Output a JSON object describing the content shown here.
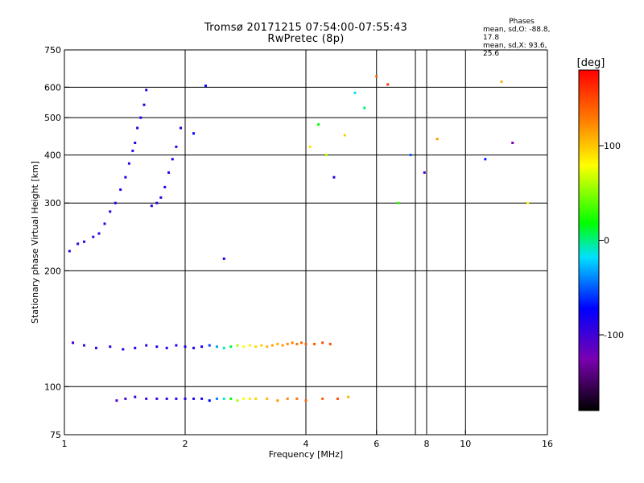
{
  "chart_data": {
    "type": "scatter",
    "title": "Tromsø 20171215 07:54:00-07:55:43",
    "subtitle": "RwPretec (8p)",
    "xlabel": "Frequency [MHz]",
    "ylabel": "Stationary phase Virtual Height [km]",
    "xscale": "log",
    "yscale": "log",
    "xlim": [
      1,
      16
    ],
    "ylim": [
      75,
      750
    ],
    "xticks": [
      1,
      2,
      4,
      6,
      8,
      10,
      16
    ],
    "xgrid": [
      2,
      4,
      6,
      7.5,
      8,
      10
    ],
    "yticks": [
      75,
      100,
      200,
      300,
      400,
      500,
      600,
      750
    ],
    "ygrid": [
      100,
      200,
      300,
      400,
      500,
      600
    ],
    "colorbar": {
      "label": "[deg]",
      "min": -180,
      "max": 180,
      "ticks": [
        100,
        0,
        -100
      ]
    },
    "phases_box": {
      "title": "Phases",
      "line1": "mean, sd,O: -88.8, 17.8",
      "line2": "mean, sd,X:  93.6, 25.6"
    },
    "series": [
      {
        "x": [
          1.05,
          1.12,
          1.2,
          1.3,
          1.4,
          1.5,
          1.6,
          1.7,
          1.8,
          1.9,
          2.0,
          2.1,
          2.2,
          2.3,
          2.4,
          2.5,
          2.6,
          2.7,
          2.8,
          2.9,
          3.0,
          3.1,
          3.2,
          3.3,
          3.4,
          3.5,
          3.6,
          3.7,
          3.8,
          3.9,
          4.0,
          4.2,
          4.4,
          4.6
        ],
        "y": [
          130,
          128,
          126,
          127,
          125,
          126,
          128,
          127,
          126,
          128,
          127,
          126,
          127,
          128,
          127,
          126,
          127,
          128,
          127,
          128,
          127,
          128,
          127,
          128,
          129,
          128,
          129,
          130,
          129,
          130,
          129,
          129,
          130,
          129
        ],
        "phase": [
          -110,
          -108,
          -105,
          -106,
          -104,
          -103,
          -105,
          -104,
          -103,
          -102,
          -100,
          -98,
          -95,
          -70,
          -40,
          -10,
          10,
          60,
          80,
          85,
          95,
          100,
          110,
          115,
          110,
          120,
          125,
          130,
          135,
          140,
          140,
          145,
          150,
          150
        ]
      },
      {
        "x": [
          1.35,
          1.42,
          1.5,
          1.6,
          1.7,
          1.8,
          1.9,
          2.0,
          2.1,
          2.2,
          2.3,
          2.4,
          2.5,
          2.6,
          2.7,
          2.8,
          2.9,
          3.0,
          3.2,
          3.4,
          3.6,
          3.8,
          4.0,
          4.4,
          4.8,
          5.1
        ],
        "y": [
          92,
          93,
          94,
          93,
          93,
          93,
          93,
          93,
          93,
          93,
          92,
          93,
          93,
          93,
          92,
          93,
          93,
          93,
          93,
          92,
          93,
          93,
          92,
          93,
          93,
          94
        ],
        "phase": [
          -115,
          -112,
          -110,
          -108,
          -106,
          -105,
          -103,
          -100,
          -98,
          -96,
          -90,
          -50,
          -10,
          20,
          60,
          80,
          90,
          100,
          110,
          120,
          130,
          135,
          140,
          145,
          150,
          110
        ]
      },
      {
        "x": [
          1.03,
          1.08,
          1.12,
          1.18,
          1.22,
          1.26,
          1.3,
          1.34,
          1.38,
          1.42,
          1.45,
          1.48,
          1.5,
          1.52,
          1.55,
          1.58,
          1.6
        ],
        "y": [
          225,
          235,
          238,
          245,
          250,
          265,
          285,
          300,
          325,
          350,
          380,
          410,
          430,
          470,
          500,
          540,
          590
        ],
        "phase": [
          -108,
          -106,
          -105,
          -104,
          -104,
          -103,
          -103,
          -102,
          -102,
          -101,
          -101,
          -100,
          -100,
          -100,
          -99,
          -99,
          -98
        ]
      },
      {
        "x": [
          1.65,
          1.7,
          1.74,
          1.78,
          1.82,
          1.86,
          1.9,
          1.95,
          2.1,
          2.25,
          2.5
        ],
        "y": [
          295,
          300,
          310,
          330,
          360,
          390,
          420,
          470,
          455,
          605,
          215
        ],
        "phase": [
          -104,
          -104,
          -103,
          -102,
          -101,
          -100,
          -100,
          -99,
          -90,
          -95,
          -95
        ]
      },
      {
        "x": [
          4.1,
          4.3,
          4.5,
          4.7,
          5.0,
          5.3,
          5.6,
          6.0,
          6.4,
          6.8,
          7.3,
          7.9,
          8.5,
          11.2,
          12.3,
          13.1,
          14.3
        ],
        "y": [
          420,
          480,
          400,
          350,
          450,
          580,
          530,
          640,
          610,
          300,
          400,
          360,
          440,
          390,
          620,
          430,
          300
        ],
        "phase": [
          90,
          20,
          60,
          -100,
          100,
          -20,
          0,
          140,
          160,
          30,
          -60,
          -110,
          120,
          -80,
          110,
          -130,
          80
        ]
      }
    ]
  }
}
